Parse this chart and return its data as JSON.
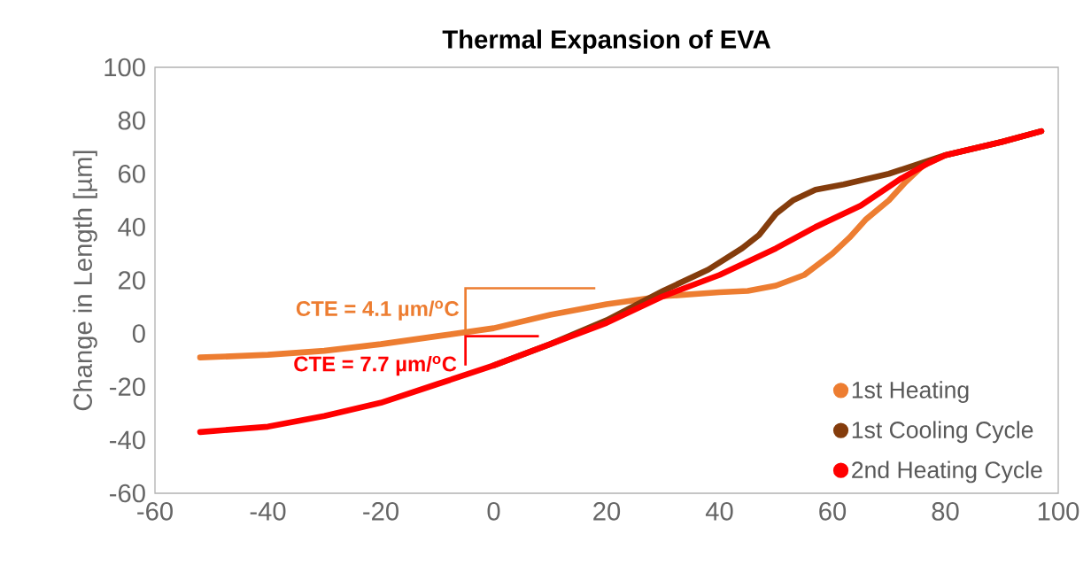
{
  "chart_data": {
    "type": "line",
    "title": "Thermal Expansion of EVA",
    "ylabel": "Change in Length [µm]",
    "xlim": [
      -60,
      100
    ],
    "xticks": [
      -60,
      -40,
      -20,
      0,
      20,
      40,
      60,
      80,
      100
    ],
    "ylim": [
      -60,
      100
    ],
    "yticks": [
      -60,
      -40,
      -20,
      0,
      20,
      40,
      60,
      80,
      100
    ],
    "grid": false,
    "legend": "bottom right",
    "series": [
      {
        "name": "1st Heating",
        "color": "#ed7d31",
        "x": [
          -52,
          -40,
          -30,
          -20,
          -10,
          0,
          10,
          20,
          30,
          40,
          45,
          50,
          55,
          60,
          63,
          66,
          70,
          73,
          76,
          80,
          90,
          97
        ],
        "values": [
          -9,
          -8,
          -6.5,
          -4,
          -1,
          2,
          7,
          11,
          14,
          15.5,
          16,
          18,
          22,
          30,
          36,
          43,
          50,
          57,
          63,
          67,
          72,
          76
        ]
      },
      {
        "name": "1st Cooling Cycle",
        "color": "#843c0c",
        "x": [
          0,
          10,
          20,
          30,
          38,
          44,
          47,
          50,
          53,
          57,
          62,
          70,
          80,
          90,
          97
        ],
        "values": [
          -12,
          -4,
          5,
          16,
          24,
          32,
          37,
          45,
          50,
          54,
          56,
          60,
          67,
          72,
          76
        ]
      },
      {
        "name": "2nd Heating Cycle",
        "color": "#ff0000",
        "x": [
          -52,
          -40,
          -30,
          -20,
          -10,
          0,
          10,
          20,
          30,
          40,
          50,
          57,
          65,
          72,
          77,
          80,
          90,
          97
        ],
        "values": [
          -37,
          -35,
          -31,
          -26,
          -19,
          -12,
          -4,
          4,
          14,
          22,
          32,
          40,
          48,
          58,
          64,
          67,
          72,
          76
        ]
      }
    ],
    "annotations": [
      {
        "text": "CTE = 4.1 µm/$^{o}$C",
        "x": -5,
        "y": 0
      },
      {
        "text": "CTE = 7.7 µm/$^{o}$C",
        "x": -5,
        "y": -13
      }
    ]
  }
}
